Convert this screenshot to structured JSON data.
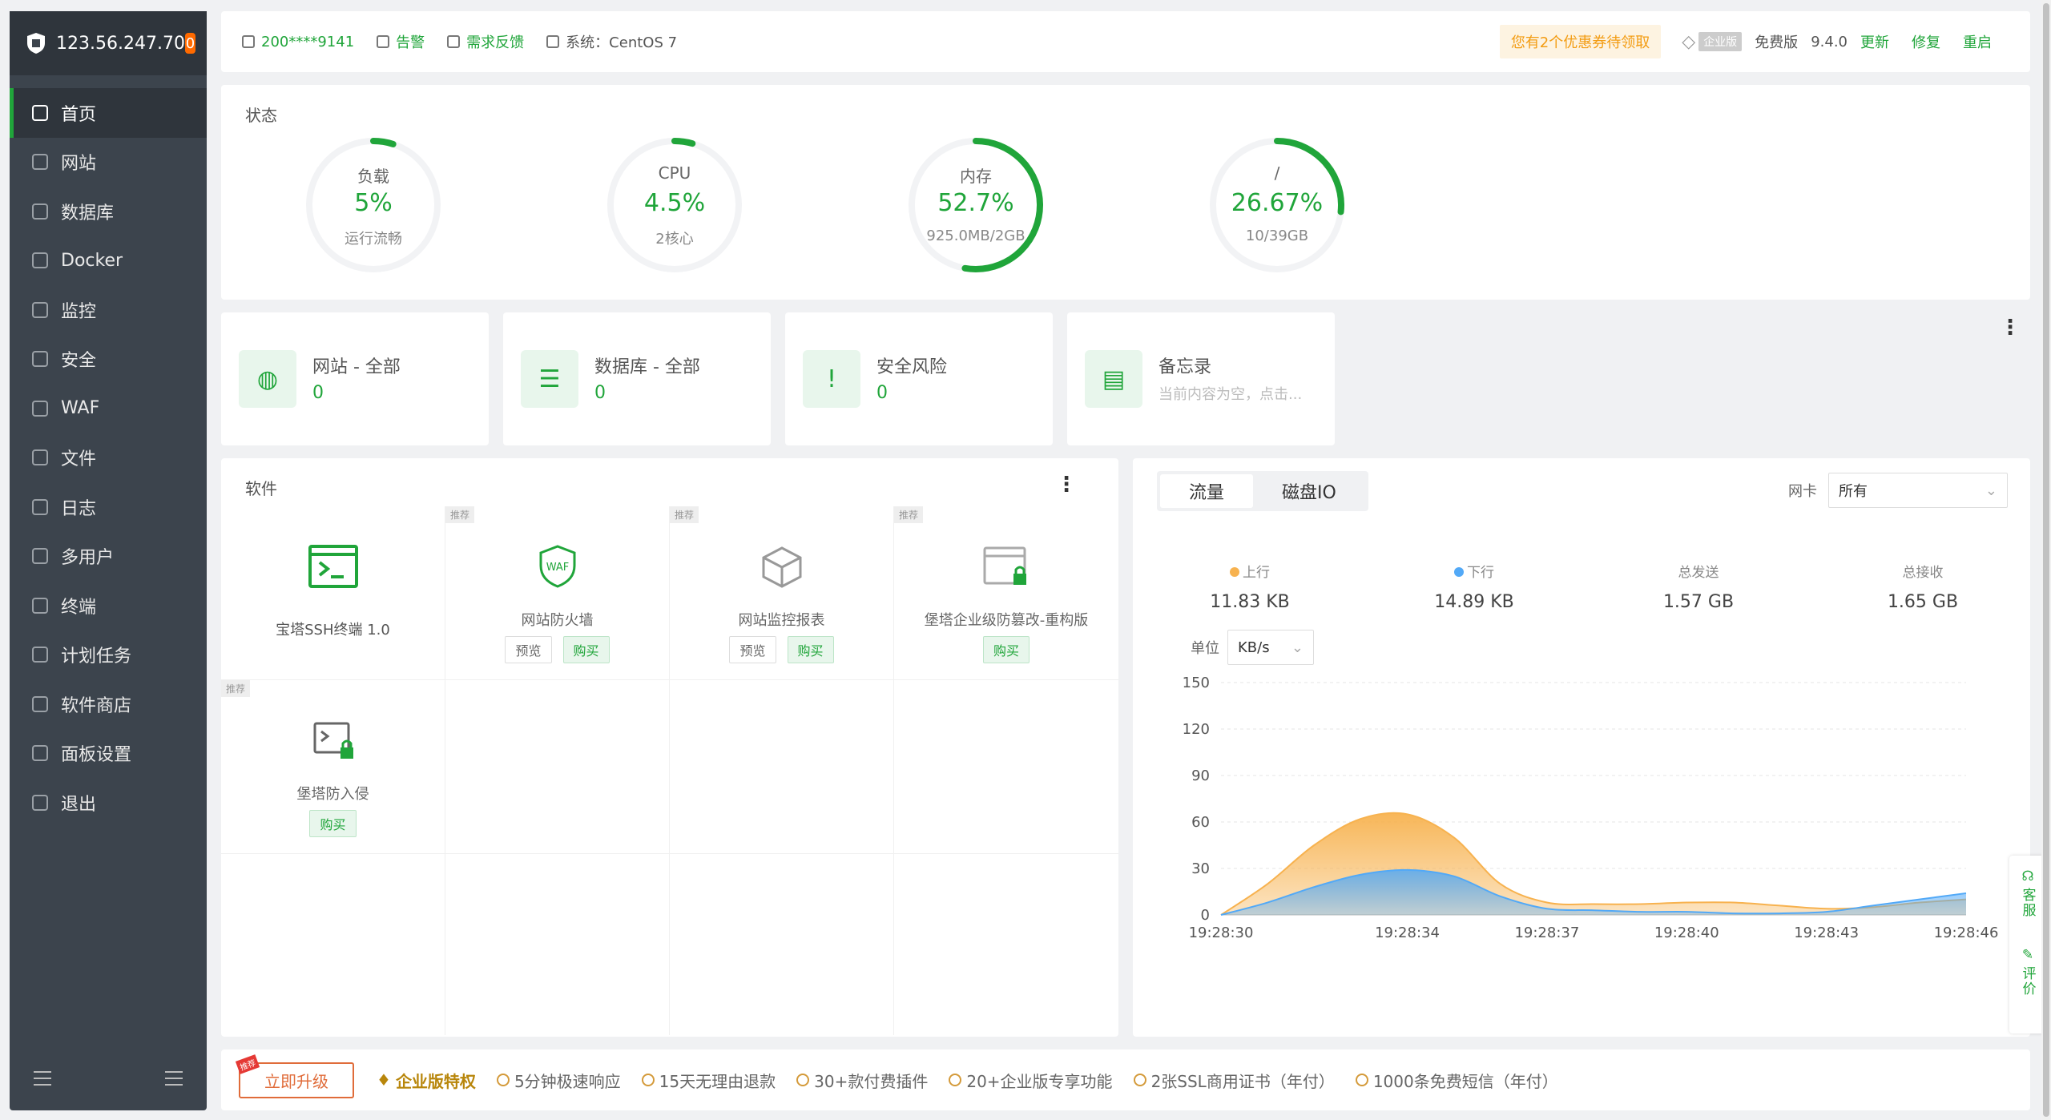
{
  "sidebar": {
    "ip": "123.56.247.70",
    "badge": "0",
    "items": [
      {
        "label": "首页"
      },
      {
        "label": "网站"
      },
      {
        "label": "数据库"
      },
      {
        "label": "Docker"
      },
      {
        "label": "监控"
      },
      {
        "label": "安全"
      },
      {
        "label": "WAF"
      },
      {
        "label": "文件"
      },
      {
        "label": "日志"
      },
      {
        "label": "多用户"
      },
      {
        "label": "终端"
      },
      {
        "label": "计划任务"
      },
      {
        "label": "软件商店"
      },
      {
        "label": "面板设置"
      },
      {
        "label": "退出"
      }
    ]
  },
  "topbar": {
    "user": "200****9141",
    "alert": "告警",
    "feedback": "需求反馈",
    "system": "系统：CentOS 7",
    "coupon": "您有2个优惠券待领取",
    "ent_tag": "企业版",
    "edition": "免费版",
    "version": "9.4.0",
    "update": "更新",
    "repair": "修复",
    "restart": "重启"
  },
  "status": {
    "title": "状态",
    "gauges": [
      {
        "label": "负载",
        "value": "5%",
        "sub": "运行流畅",
        "pct": 0.05
      },
      {
        "label": "CPU",
        "value": "4.5%",
        "sub": "2核心",
        "pct": 0.045
      },
      {
        "label": "内存",
        "value": "52.7%",
        "sub": "925.0MB/2GB",
        "pct": 0.527
      },
      {
        "label": "/",
        "value": "26.67%",
        "sub": "10/39GB",
        "pct": 0.2667
      }
    ]
  },
  "overview": [
    {
      "title": "网站 - 全部",
      "value": "0"
    },
    {
      "title": "数据库 - 全部",
      "value": "0"
    },
    {
      "title": "安全风险",
      "value": "0"
    },
    {
      "title": "备忘录",
      "value": "当前内容为空，点击..."
    }
  ],
  "software": {
    "title": "软件",
    "tag": "推荐",
    "preview": "预览",
    "buy": "购买",
    "items": [
      {
        "name": "宝塔SSH终端 1.0"
      },
      {
        "name": "网站防火墙"
      },
      {
        "name": "网站监控报表"
      },
      {
        "name": "堡塔企业级防篡改-重构版"
      },
      {
        "name": "堡塔防入侵"
      }
    ]
  },
  "traffic": {
    "tabs": [
      "流量",
      "磁盘IO"
    ],
    "nic_label": "网卡",
    "nic_value": "所有",
    "unit_label": "单位",
    "unit_value": "KB/s",
    "stats": [
      {
        "label": "上行",
        "value": "11.83 KB"
      },
      {
        "label": "下行",
        "value": "14.89 KB"
      },
      {
        "label": "总发送",
        "value": "1.57 GB"
      },
      {
        "label": "总接收",
        "value": "1.65 GB"
      }
    ]
  },
  "chart_data": {
    "type": "area",
    "x": [
      "19:28:30",
      "19:28:31",
      "19:28:32",
      "19:28:33",
      "19:28:34",
      "19:28:35",
      "19:28:36",
      "19:28:37",
      "19:28:38",
      "19:28:39",
      "19:28:40",
      "19:28:41",
      "19:28:42",
      "19:28:43",
      "19:28:44",
      "19:28:45",
      "19:28:46"
    ],
    "xticks": [
      "19:28:30",
      "19:28:34",
      "19:28:37",
      "19:28:40",
      "19:28:43",
      "19:28:46"
    ],
    "series": [
      {
        "name": "上行",
        "color": "#f7b24f",
        "values": [
          0,
          20,
          45,
          62,
          65,
          50,
          20,
          8,
          7,
          7,
          8,
          8,
          6,
          4,
          5,
          8,
          10
        ]
      },
      {
        "name": "下行",
        "color": "#52a9f7",
        "values": [
          0,
          8,
          18,
          26,
          29,
          25,
          12,
          4,
          3,
          2,
          2,
          1,
          1,
          2,
          6,
          10,
          14
        ]
      }
    ],
    "ylim": [
      0,
      150
    ],
    "yticks": [
      0,
      30,
      60,
      90,
      120,
      150
    ],
    "grid": true
  },
  "bottom": {
    "upgrade": "立即升级",
    "hot": "推荐",
    "privilege": "企业版特权",
    "features": [
      "5分钟极速响应",
      "15天无理由退款",
      "30+款付费插件",
      "20+企业版专享功能",
      "2张SSL商用证书（年付）",
      "1000条免费短信（年付）"
    ]
  },
  "float": {
    "service": "客服",
    "rate": "评价"
  },
  "colors": {
    "accent": "#20a53a",
    "sidebar": "#3c444d",
    "upload": "#f7b24f",
    "download": "#52a9f7"
  }
}
